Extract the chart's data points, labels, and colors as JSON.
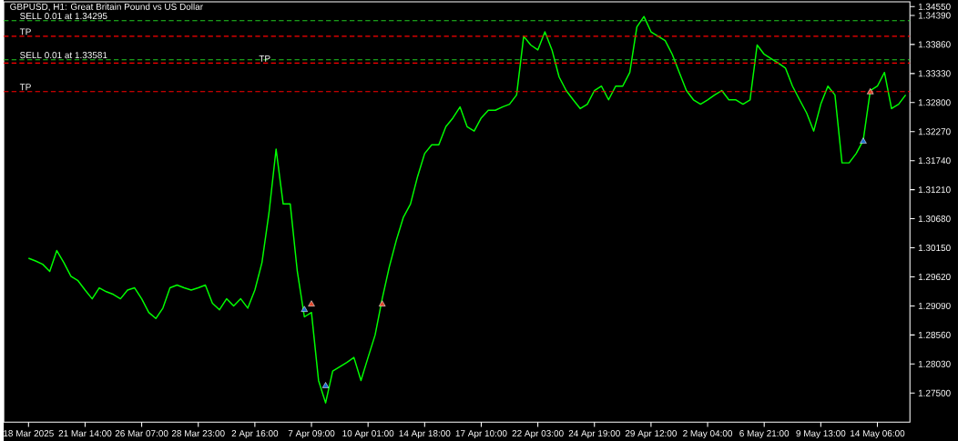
{
  "chart_data": {
    "type": "line",
    "title": "GBPUSD, H1: Great Britain Pound vs US Dollar",
    "categories": [
      "18 Mar 2025",
      null,
      null,
      null,
      null,
      null,
      null,
      null,
      "21 Mar 14:00",
      null,
      null,
      null,
      null,
      null,
      null,
      null,
      "26 Mar 07:00",
      null,
      null,
      null,
      null,
      null,
      null,
      null,
      "28 Mar 23:00",
      null,
      null,
      null,
      null,
      null,
      null,
      null,
      "2 Apr 16:00",
      null,
      null,
      null,
      null,
      null,
      null,
      null,
      "7 Apr 09:00",
      null,
      null,
      null,
      null,
      null,
      null,
      null,
      "10 Apr 01:00",
      null,
      null,
      null,
      null,
      null,
      null,
      null,
      "14 Apr 18:00",
      null,
      null,
      null,
      null,
      null,
      null,
      null,
      "17 Apr 10:00",
      null,
      null,
      null,
      null,
      null,
      null,
      null,
      "22 Apr 03:00",
      null,
      null,
      null,
      null,
      null,
      null,
      null,
      "24 Apr 19:00",
      null,
      null,
      null,
      null,
      null,
      null,
      null,
      "29 Apr 12:00",
      null,
      null,
      null,
      null,
      null,
      null,
      null,
      "2 May 04:00",
      null,
      null,
      null,
      null,
      null,
      null,
      null,
      "6 May 21:00",
      null,
      null,
      null,
      null,
      null,
      null,
      null,
      "9 May 13:00",
      null,
      null,
      null,
      null,
      null,
      null,
      null,
      "14 May 06:00",
      null,
      null,
      null,
      null
    ],
    "series": [
      {
        "color": "#00ff00",
        "values": [
          1.2996,
          1.2991,
          1.2985,
          1.2972,
          1.301,
          1.2988,
          1.2963,
          1.2955,
          1.2938,
          1.2922,
          1.2942,
          1.2935,
          1.293,
          1.2922,
          1.2938,
          1.2942,
          1.2922,
          1.2897,
          1.2886,
          1.2905,
          1.2942,
          1.2947,
          1.2942,
          1.2938,
          1.2942,
          1.2947,
          1.2914,
          1.2902,
          1.2922,
          1.2909,
          1.2922,
          1.2905,
          1.2938,
          1.2988,
          1.3079,
          1.3195,
          1.3095,
          1.3095,
          1.2972,
          1.2889,
          1.2897,
          1.2773,
          1.2732,
          1.279,
          1.2798,
          1.2806,
          1.2815,
          1.2773,
          1.2815,
          1.2856,
          1.2922,
          1.298,
          1.3029,
          1.3071,
          1.3095,
          1.3145,
          1.3187,
          1.3203,
          1.3203,
          1.3236,
          1.3252,
          1.3272,
          1.3236,
          1.3228,
          1.3252,
          1.3266,
          1.3266,
          1.3272,
          1.3277,
          1.3294,
          1.3401,
          1.3385,
          1.3376,
          1.3409,
          1.3376,
          1.3327,
          1.3302,
          1.3285,
          1.3269,
          1.3277,
          1.3302,
          1.331,
          1.3285,
          1.331,
          1.331,
          1.3335,
          1.3418,
          1.3437,
          1.3409,
          1.3401,
          1.3393,
          1.3368,
          1.3335,
          1.3302,
          1.3285,
          1.3277,
          1.3285,
          1.3294,
          1.3302,
          1.3285,
          1.3285,
          1.3277,
          1.3285,
          1.3385,
          1.3368,
          1.336,
          1.3352,
          1.3343,
          1.331,
          1.3285,
          1.3261,
          1.3228,
          1.3277,
          1.331,
          1.3294,
          1.317,
          1.317,
          1.3187,
          1.3211,
          1.3302,
          1.331,
          1.3335,
          1.3269,
          1.3277,
          1.3294
        ]
      },
      {
        "type": "scatter",
        "marker": "triangle",
        "color": "#1e6fd0",
        "values": [
          null,
          null,
          null,
          null,
          null,
          null,
          null,
          null,
          null,
          null,
          null,
          null,
          null,
          null,
          null,
          null,
          null,
          null,
          null,
          null,
          null,
          null,
          null,
          null,
          null,
          null,
          null,
          null,
          null,
          null,
          null,
          null,
          null,
          null,
          null,
          null,
          null,
          null,
          null,
          1.2902,
          null,
          null,
          1.2763,
          null,
          null,
          null,
          null,
          null,
          null,
          null,
          null,
          null,
          null,
          null,
          null,
          null,
          null,
          null,
          null,
          null,
          null,
          null,
          null,
          null,
          null,
          null,
          null,
          null,
          null,
          null,
          null,
          null,
          null,
          null,
          null,
          null,
          null,
          null,
          null,
          null,
          null,
          null,
          null,
          null,
          null,
          null,
          null,
          null,
          null,
          null,
          null,
          null,
          null,
          null,
          null,
          null,
          null,
          null,
          null,
          null,
          null,
          null,
          null,
          null,
          null,
          null,
          null,
          null,
          null,
          null,
          null,
          null,
          null,
          null,
          null,
          null,
          null,
          null,
          1.3209,
          null,
          null,
          null,
          null,
          null,
          null
        ]
      },
      {
        "type": "scatter",
        "marker": "triangle",
        "color": "#e0452a",
        "values": [
          null,
          null,
          null,
          null,
          null,
          null,
          null,
          null,
          null,
          null,
          null,
          null,
          null,
          null,
          null,
          null,
          null,
          null,
          null,
          null,
          null,
          null,
          null,
          null,
          null,
          null,
          null,
          null,
          null,
          null,
          null,
          null,
          null,
          null,
          null,
          null,
          null,
          null,
          null,
          null,
          1.2912,
          null,
          null,
          null,
          null,
          null,
          null,
          null,
          null,
          null,
          1.2912,
          null,
          null,
          null,
          null,
          null,
          null,
          null,
          null,
          null,
          null,
          null,
          null,
          null,
          null,
          null,
          null,
          null,
          null,
          null,
          null,
          null,
          null,
          null,
          null,
          null,
          null,
          null,
          null,
          null,
          null,
          null,
          null,
          null,
          null,
          null,
          null,
          null,
          null,
          null,
          null,
          null,
          null,
          null,
          null,
          null,
          null,
          null,
          null,
          null,
          null,
          null,
          null,
          null,
          null,
          null,
          null,
          null,
          null,
          null,
          null,
          null,
          null,
          null,
          null,
          null,
          null,
          null,
          null,
          1.3299,
          null,
          null,
          null,
          null,
          null
        ]
      }
    ],
    "ylim": [
      1.26971,
      1.34638
    ],
    "yticks": [
      {
        "value": 1.275,
        "label": "1.27500"
      },
      {
        "value": 1.2803,
        "label": "1.28030"
      },
      {
        "value": 1.2856,
        "label": "1.28560"
      },
      {
        "value": 1.2909,
        "label": "1.29090"
      },
      {
        "value": 1.2962,
        "label": "1.29620"
      },
      {
        "value": 1.3015,
        "label": "1.30150"
      },
      {
        "value": 1.3068,
        "label": "1.30680"
      },
      {
        "value": 1.3121,
        "label": "1.31210"
      },
      {
        "value": 1.3174,
        "label": "1.31740"
      },
      {
        "value": 1.3227,
        "label": "1.32270"
      },
      {
        "value": 1.328,
        "label": "1.32800"
      },
      {
        "value": 1.3333,
        "label": "1.33330"
      },
      {
        "value": 1.3386,
        "label": "1.33860"
      },
      {
        "value": 1.3439,
        "label": "1.34390"
      },
      {
        "value": 1.3455,
        "label": "1.34550"
      }
    ],
    "ref_lines": [
      {
        "axis": "y",
        "value": 1.34295,
        "label": "SELL 0.01 at 1.34295",
        "color": "#22cc22",
        "line_style": "dashed"
      },
      {
        "axis": "y",
        "value": 1.3401,
        "label": "TP",
        "color": "#ff0000",
        "line_style": "dashed"
      },
      {
        "axis": "y",
        "value": 1.33581,
        "label": "SELL 0.01 at 1.33581",
        "color": "#22cc22",
        "line_style": "dashed"
      },
      {
        "axis": "y",
        "value": 1.3352,
        "label": "TP",
        "color": "#ff0000",
        "line_style": "dashed"
      },
      {
        "axis": "y",
        "value": 1.33,
        "label": "TP",
        "color": "#ff0000",
        "line_style": "dashed"
      }
    ]
  }
}
